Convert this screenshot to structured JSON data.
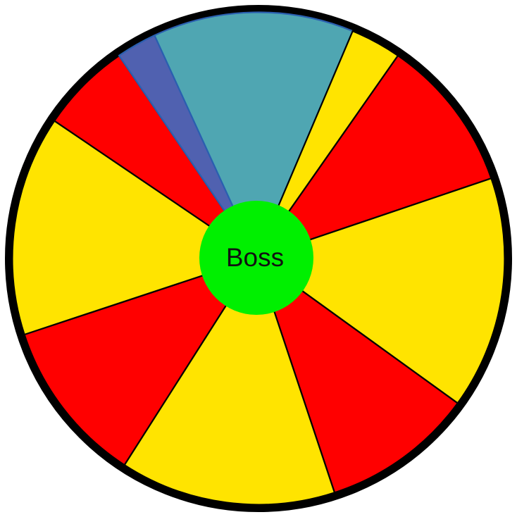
{
  "wheel": {
    "segments": [
      {
        "name": "teal",
        "color": "#4fa6b2",
        "start": -25.0,
        "end": 22.5,
        "border": "#2a5fb0"
      },
      {
        "name": "yellow",
        "color": "#ffe400",
        "start": 22.5,
        "end": 34.5,
        "border": "#000000"
      },
      {
        "name": "red",
        "color": "#ff0000",
        "start": 34.5,
        "end": 71.0,
        "border": "#000000"
      },
      {
        "name": "yellow",
        "color": "#ffe400",
        "start": 71.0,
        "end": 126.0,
        "border": "#000000"
      },
      {
        "name": "red",
        "color": "#ff0000",
        "start": 126.0,
        "end": 162.0,
        "border": "#000000"
      },
      {
        "name": "yellow",
        "color": "#ffe400",
        "start": 162.0,
        "end": 213.0,
        "border": "#000000"
      },
      {
        "name": "red",
        "color": "#ff0000",
        "start": 213.0,
        "end": 252.0,
        "border": "#000000"
      },
      {
        "name": "yellow",
        "color": "#ffe400",
        "start": 252.0,
        "end": 304.0,
        "border": "#000000"
      },
      {
        "name": "red",
        "color": "#ff0000",
        "start": 304.0,
        "end": 325.5,
        "border": "#000000"
      },
      {
        "name": "blue",
        "color": "#5061b0",
        "start": 325.5,
        "end": 335.0,
        "border": "#2a5fb0"
      }
    ],
    "rim_color": "#000000",
    "hub": {
      "label": "Boss",
      "color": "#00f000"
    }
  }
}
